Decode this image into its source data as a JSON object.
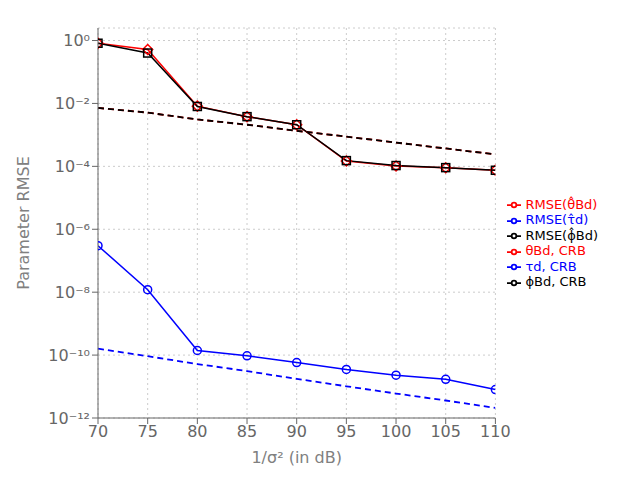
{
  "chart_data": {
    "type": "line",
    "xlabel": "1/σ² (in dB)",
    "ylabel": "Parameter RMSE",
    "x": [
      70,
      75,
      80,
      85,
      90,
      95,
      100,
      105,
      110
    ],
    "series": [
      {
        "name": "RMSE(τ̂d)",
        "color": "#0000FF",
        "marker": "circle",
        "line_style": "solid",
        "values": [
          3e-07,
          1.2e-08,
          1.4e-10,
          9.5e-11,
          5.8e-11,
          3.5e-11,
          2.3e-11,
          1.7e-11,
          8e-12
        ]
      },
      {
        "name": "RMSE(θ̂Bd)",
        "color": "#FF0000",
        "marker": "diamond",
        "line_style": "solid",
        "values": [
          0.82,
          0.52,
          0.0082,
          0.0038,
          0.0021,
          0.000148,
          0.000103,
          9e-05,
          7.5e-05
        ]
      },
      {
        "name": "RMSE(ϕ̂Bd)",
        "color": "#000000",
        "marker": "square",
        "line_style": "solid",
        "values": [
          0.82,
          0.4,
          0.008,
          0.0038,
          0.0021,
          0.000152,
          0.000106,
          9.1e-05,
          7.5e-05
        ]
      },
      {
        "name": "τd, CRB",
        "color": "#0000FF",
        "marker": "none",
        "line_style": "dashed",
        "values": [
          1.6e-10,
          9.2e-11,
          5.2e-11,
          3.1e-11,
          1.75e-11,
          1.02e-11,
          6e-12,
          3.6e-12,
          2.1e-12
        ]
      },
      {
        "name": "θBd, CRB",
        "color": "#FF0000",
        "marker": "none",
        "line_style": "dashed",
        "values": [
          0.0072,
          0.0051,
          0.0031,
          0.0021,
          0.00135,
          0.00088,
          0.00057,
          0.00037,
          0.00024
        ]
      },
      {
        "name": "ϕBd, CRB",
        "color": "#000000",
        "marker": "none",
        "line_style": "dashed",
        "values": [
          0.0072,
          0.0051,
          0.0031,
          0.0021,
          0.00135,
          0.00088,
          0.00057,
          0.00037,
          0.00024
        ]
      }
    ],
    "xlim": [
      70,
      110
    ],
    "xticks": [
      70,
      75,
      80,
      85,
      90,
      95,
      100,
      105,
      110
    ],
    "ylim": [
      1e-12,
      2.5
    ],
    "yticks": [
      {
        "value": 1e-12,
        "label": "10⁻¹²"
      },
      {
        "value": 1e-10,
        "label": "10⁻¹⁰"
      },
      {
        "value": 1e-08,
        "label": "10⁻⁸"
      },
      {
        "value": 1e-06,
        "label": "10⁻⁶"
      },
      {
        "value": 0.0001,
        "label": "10⁻⁴"
      },
      {
        "value": 0.01,
        "label": "10⁻²"
      },
      {
        "value": 1,
        "label": "10⁰"
      }
    ],
    "log": "y",
    "grid": true,
    "legend": "right"
  }
}
